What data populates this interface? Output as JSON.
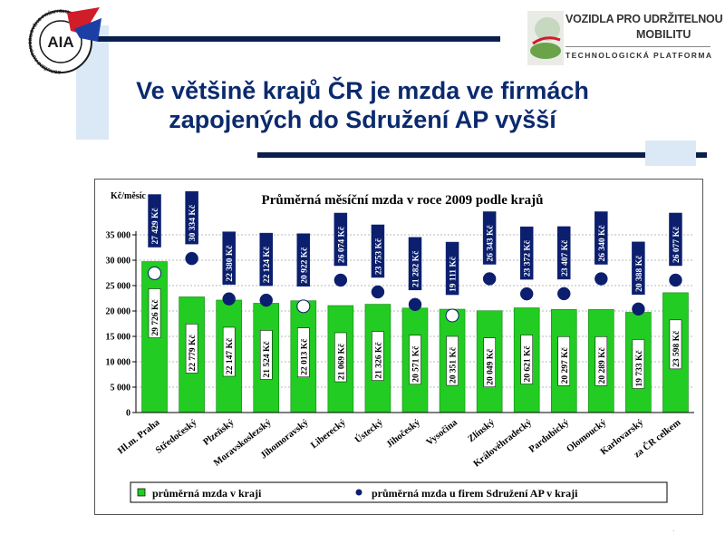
{
  "slide": {
    "title_line1": "Ve většině krajů ČR je mzda ve firmách",
    "title_line2": "zapojených do Sdružení AP vyšší"
  },
  "logos": {
    "aia": {
      "text": "AIA",
      "ring_text": "SDRUŽENÍ AUTOMOBILOVÉHO PRŮMYSLU"
    },
    "vozidla": {
      "line1": "VOZIDLA PRO UDRŽITELNOU",
      "line2": "MOBILITU",
      "line3": "TECHNOLOGICKÁ PLATFORMA"
    }
  },
  "chart_data": {
    "type": "bar",
    "title": "Průměrná měsíční mzda v roce 2009 podle krajů",
    "ylabel": "Kč/měsíc",
    "ylim": [
      0,
      35000
    ],
    "yticks": [
      "0",
      "5 000",
      "10 000",
      "15 000",
      "20 000",
      "25 000",
      "30 000",
      "35 000"
    ],
    "categories": [
      "Hl.m. Praha",
      "Středočeský",
      "Plzeňský",
      "Moravskoslezský",
      "Jihomoravský",
      "Liberecký",
      "Ústecký",
      "Jihočeský",
      "Vysočina",
      "Zlínský",
      "Královéhradecký",
      "Pardubický",
      "Olomoucký",
      "Karlovarský",
      "za ČR celkem"
    ],
    "series": [
      {
        "name": "průměrná mzda v kraji",
        "values": [
          29726,
          22779,
          22147,
          21524,
          22013,
          21069,
          21326,
          20571,
          20351,
          20049,
          20621,
          20297,
          20289,
          19733,
          23598
        ],
        "labels": [
          "29 726 Kč",
          "22 779 Kč",
          "22 147 Kč",
          "21 524 Kč",
          "22 013 Kč",
          "21 069 Kč",
          "21 326 Kč",
          "20 571 Kč",
          "20 351 Kč",
          "20 049 Kč",
          "20 621 Kč",
          "20 297 Kč",
          "20 289 Kč",
          "19 733 Kč",
          "23 598 Kč"
        ]
      },
      {
        "name": "průměrná mzda u firem Sdružení AP v kraji",
        "values": [
          27429,
          30334,
          22380,
          22124,
          20922,
          26074,
          23753,
          21282,
          19111,
          26343,
          23372,
          23407,
          26340,
          20388,
          26077
        ],
        "labels": [
          "27 429 Kč",
          "30 334 Kč",
          "22 380 Kč",
          "22 124 Kč",
          "20 922 Kč",
          "26 074 Kč",
          "23 753 Kč",
          "21 282 Kč",
          "19 111 Kč",
          "26 343 Kč",
          "23 372 Kč",
          "23 407 Kč",
          "26 340 Kč",
          "20 388 Kč",
          "26 077 Kč"
        ]
      }
    ],
    "grid": true,
    "legend_position": "bottom",
    "colors": {
      "bar": "#22cc22",
      "dot": "#0b1f6e",
      "dot_hollow_fill": "#ffffff",
      "label_box_bar": "#ffffff",
      "label_box_dot": "#0b1f6e"
    }
  }
}
